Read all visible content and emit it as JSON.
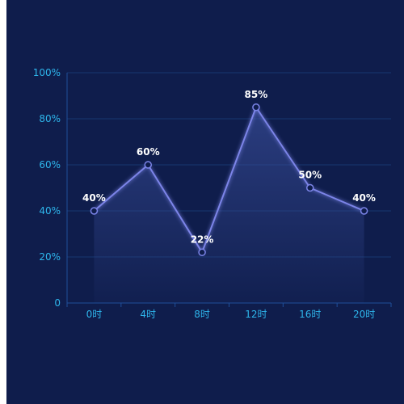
{
  "chart_data": {
    "type": "line",
    "categories": [
      "0时",
      "4时",
      "8时",
      "12时",
      "16时",
      "20时"
    ],
    "series": [
      {
        "values": [
          40,
          60,
          22,
          85,
          50,
          40
        ],
        "labels": [
          "40%",
          "60%",
          "22%",
          "85%",
          "50%",
          "40%"
        ]
      }
    ],
    "yticks": [
      {
        "value": 0,
        "label": "0"
      },
      {
        "value": 20,
        "label": "20%"
      },
      {
        "value": 40,
        "label": "40%"
      },
      {
        "value": 60,
        "label": "60%"
      },
      {
        "value": 80,
        "label": "80%"
      },
      {
        "value": 100,
        "label": "100%"
      }
    ],
    "ylim": [
      0,
      100
    ],
    "grid": true,
    "area_fill": true,
    "colors": {
      "background": "#0f1d4c",
      "line": "#7b84e8",
      "grid": "#17366f",
      "axis": "#1f4f9a",
      "tick_text": "#2eb6ec",
      "label_text": "#ffffff"
    }
  }
}
